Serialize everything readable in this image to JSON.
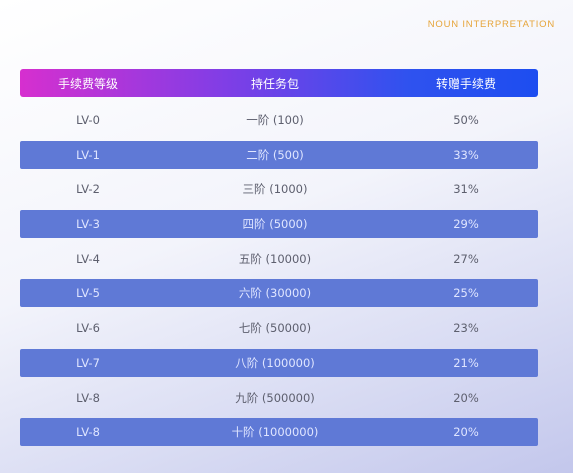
{
  "top_label": "NOUN INTERPRETATION",
  "table": {
    "headers": [
      "手续费等级",
      "持任务包",
      "转赠手续费"
    ],
    "rows": [
      {
        "level": "LV-0",
        "package": "一阶 (100)",
        "fee": "50%"
      },
      {
        "level": "LV-1",
        "package": "二阶 (500)",
        "fee": "33%"
      },
      {
        "level": "LV-2",
        "package": "三阶 (1000)",
        "fee": "31%"
      },
      {
        "level": "LV-3",
        "package": "四阶 (5000)",
        "fee": "29%"
      },
      {
        "level": "LV-4",
        "package": "五阶 (10000)",
        "fee": "27%"
      },
      {
        "level": "LV-5",
        "package": "六阶 (30000)",
        "fee": "25%"
      },
      {
        "level": "LV-6",
        "package": "七阶 (50000)",
        "fee": "23%"
      },
      {
        "level": "LV-7",
        "package": "八阶 (100000)",
        "fee": "21%"
      },
      {
        "level": "LV-8",
        "package": "九阶 (500000)",
        "fee": "20%"
      },
      {
        "level": "LV-8",
        "package": "十阶 (1000000)",
        "fee": "20%"
      }
    ]
  },
  "colors": {
    "accent_text": "#e6a53a",
    "band": "#5f79d6",
    "header_start": "#d62fcf",
    "header_end": "#1d4df0"
  }
}
